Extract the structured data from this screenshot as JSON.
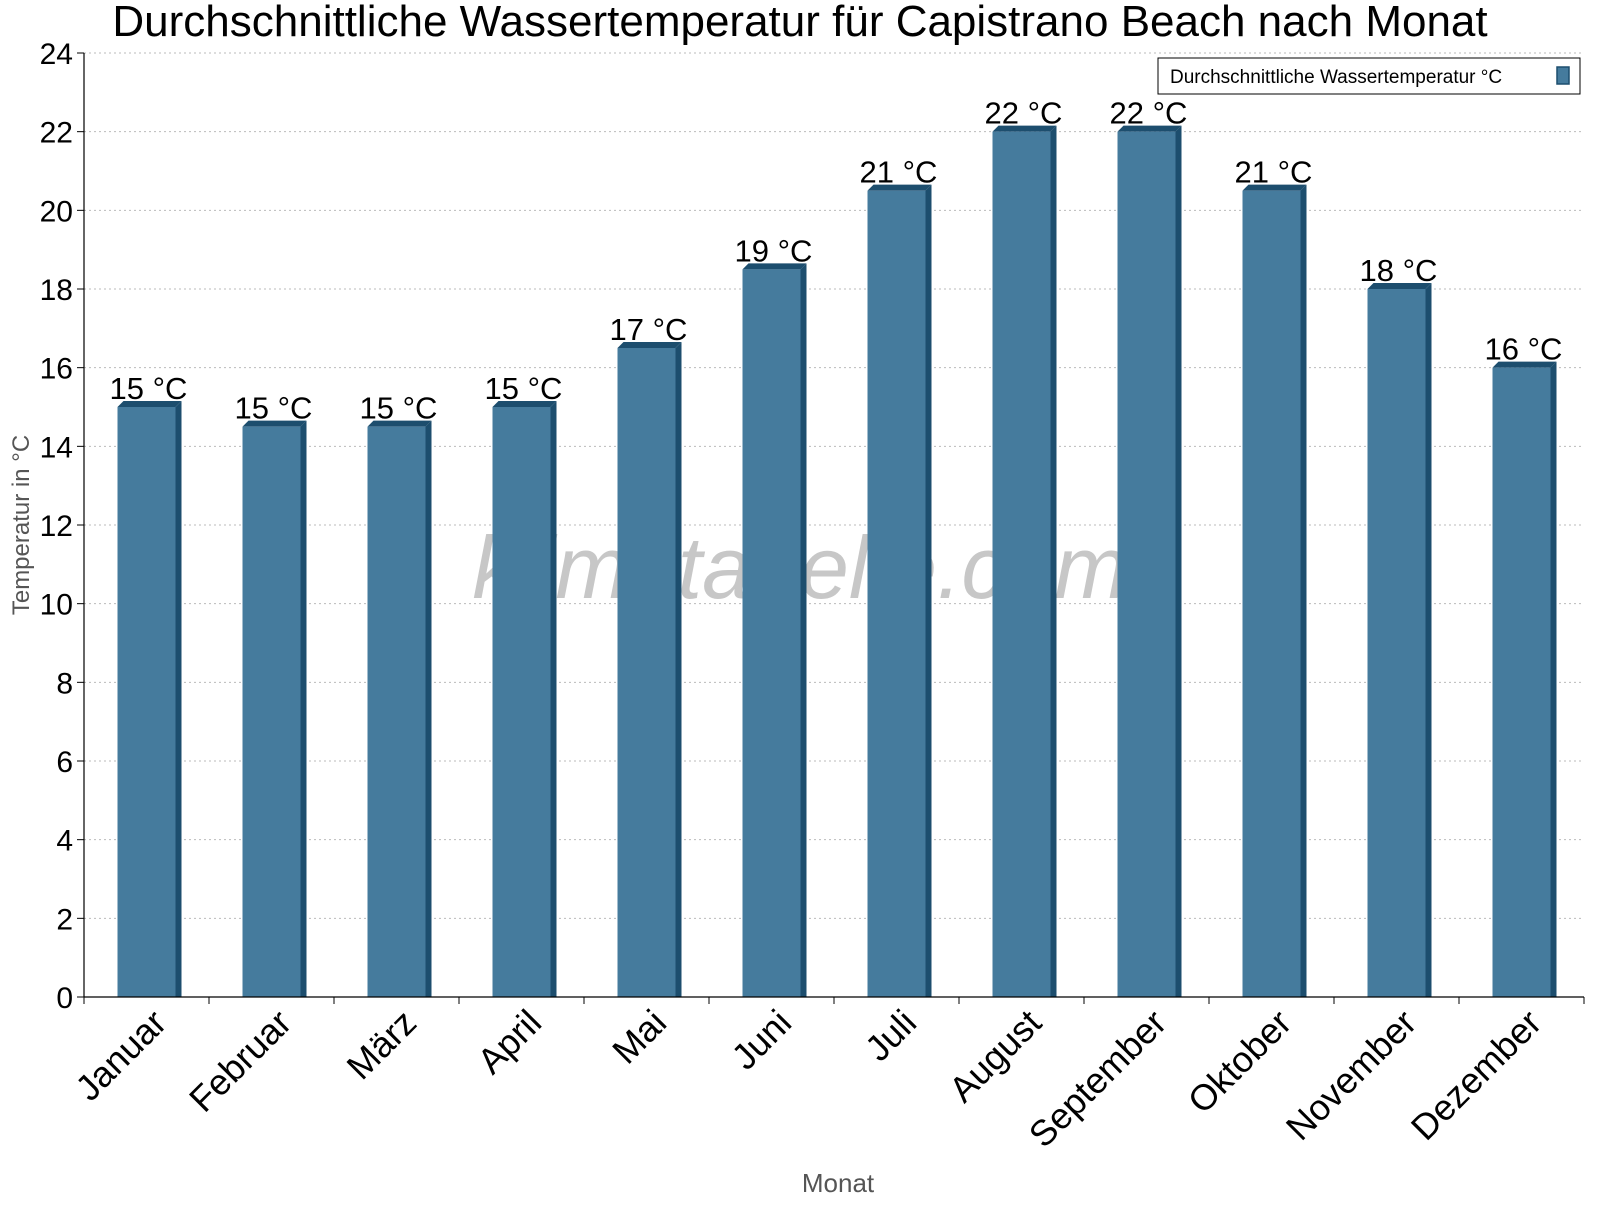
{
  "chart_data": {
    "type": "bar",
    "title": "Durchschnittliche Wassertemperatur für Capistrano Beach nach Monat",
    "xlabel": "Monat",
    "ylabel": "Temperatur in °C",
    "categories": [
      "Januar",
      "Februar",
      "März",
      "April",
      "Mai",
      "Juni",
      "Juli",
      "August",
      "September",
      "Oktober",
      "November",
      "Dezember"
    ],
    "series": [
      {
        "name": "Durchschnittliche Wassertemperatur °C",
        "values": [
          15,
          14.5,
          14.5,
          15,
          16.5,
          18.5,
          20.5,
          22,
          22,
          20.5,
          18,
          16
        ],
        "labels": [
          "15 °C",
          "15 °C",
          "15 °C",
          "15 °C",
          "17 °C",
          "19 °C",
          "21 °C",
          "22 °C",
          "22 °C",
          "21 °C",
          "18 °C",
          "16 °C"
        ]
      }
    ],
    "ylim": [
      0,
      24
    ],
    "yticks": [
      0,
      2,
      4,
      6,
      8,
      10,
      12,
      14,
      16,
      18,
      20,
      22,
      24
    ],
    "grid": true,
    "legend_position": "top-right",
    "watermark": "klimatabelle.com",
    "colors": {
      "bar_face": "#457b9d",
      "bar_side": "#1d4e6e",
      "bar_top": "#1d4e6e",
      "grid": "#bbbbbb",
      "axis": "#000000",
      "axis_label": "#555555",
      "watermark": "#9a9a9a"
    }
  }
}
